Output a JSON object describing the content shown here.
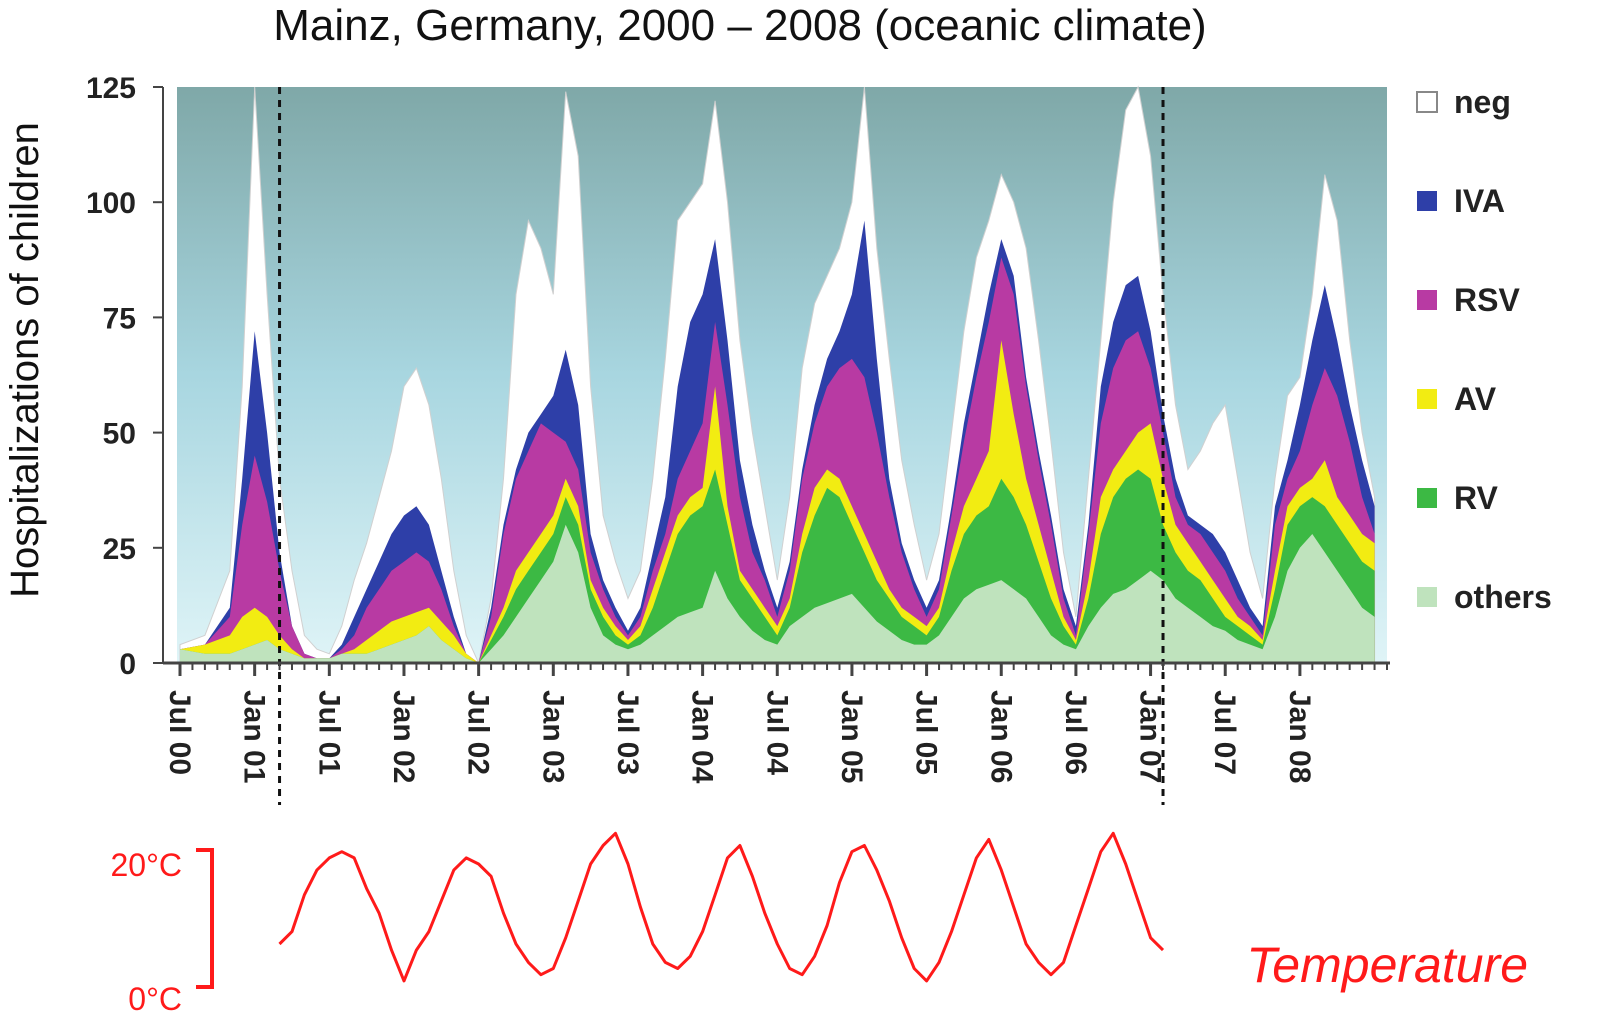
{
  "chart_data": {
    "type": "area",
    "title": "Mainz, Germany, 2000 – 2008 (oceanic climate)",
    "ylabel": "Hospitalizations of children",
    "xlabel": "",
    "ylim": [
      0,
      125
    ],
    "yticks": [
      0,
      25,
      50,
      75,
      100,
      125
    ],
    "xlim": [
      0,
      97
    ],
    "x_unit": "months since Jul 2000",
    "x_tick_labels": [
      "Jul 00",
      "Jan 01",
      "Jul 01",
      "Jan 02",
      "Jul 02",
      "Jan 03",
      "Jul 03",
      "Jan 04",
      "Jul 04",
      "Jan 05",
      "Jul 05",
      "Jan 06",
      "Jul 06",
      "Jan 07",
      "Jul 07",
      "Jan 08"
    ],
    "x_tick_positions": [
      0,
      6,
      12,
      18,
      24,
      30,
      36,
      42,
      48,
      54,
      60,
      66,
      72,
      78,
      84,
      90
    ],
    "vertical_lines": [
      8,
      79
    ],
    "stack_order": [
      "others",
      "RV",
      "AV",
      "RSV",
      "IVA",
      "neg"
    ],
    "legend": {
      "placement": "right",
      "entries": [
        {
          "name": "neg",
          "color": "#ffffff"
        },
        {
          "name": "IVA",
          "color": "#2e3fa8"
        },
        {
          "name": "RSV",
          "color": "#b83aa3"
        },
        {
          "name": "AV",
          "color": "#f2ec12"
        },
        {
          "name": "RV",
          "color": "#3cb944"
        },
        {
          "name": "others",
          "color": "#bfe3bd"
        }
      ]
    },
    "series_colors": {
      "others": "#bfe3bd",
      "RV": "#3cb944",
      "AV": "#f2ec12",
      "RSV": "#b83aa3",
      "IVA": "#2e3fa8",
      "neg": "#ffffff"
    },
    "cumulative_top_values": {
      "x": [
        0,
        2,
        4,
        5,
        6,
        7,
        8,
        9,
        10,
        11,
        12,
        13,
        14,
        15,
        16,
        17,
        18,
        19,
        20,
        21,
        22,
        23,
        24,
        25,
        26,
        27,
        28,
        29,
        30,
        31,
        32,
        33,
        34,
        35,
        36,
        37,
        38,
        39,
        40,
        41,
        42,
        43,
        44,
        45,
        46,
        47,
        48,
        49,
        50,
        51,
        52,
        53,
        54,
        55,
        56,
        57,
        58,
        59,
        60,
        61,
        62,
        63,
        64,
        65,
        66,
        67,
        68,
        69,
        70,
        71,
        72,
        73,
        74,
        75,
        76,
        77,
        78,
        79,
        80,
        81,
        82,
        83,
        84,
        85,
        86,
        87,
        88,
        89,
        90,
        91,
        92,
        93,
        94,
        95,
        96
      ],
      "others": [
        3,
        2,
        2,
        3,
        4,
        5,
        3,
        2,
        1,
        1,
        1,
        2,
        2,
        2,
        3,
        4,
        5,
        6,
        8,
        5,
        3,
        1,
        0,
        3,
        6,
        10,
        14,
        18,
        22,
        30,
        24,
        12,
        6,
        4,
        3,
        4,
        6,
        8,
        10,
        11,
        12,
        20,
        14,
        10,
        7,
        5,
        4,
        8,
        10,
        12,
        13,
        14,
        15,
        12,
        9,
        7,
        5,
        4,
        4,
        6,
        10,
        14,
        16,
        17,
        18,
        16,
        14,
        10,
        6,
        4,
        3,
        8,
        12,
        15,
        16,
        18,
        20,
        18,
        14,
        12,
        10,
        8,
        7,
        5,
        4,
        3,
        10,
        20,
        25,
        28,
        24,
        20,
        16,
        12,
        10
      ],
      "RV": [
        3,
        2,
        2,
        3,
        4,
        5,
        3,
        2,
        1,
        1,
        1,
        2,
        2,
        2,
        3,
        4,
        5,
        6,
        8,
        5,
        3,
        1,
        0,
        5,
        10,
        16,
        20,
        24,
        28,
        36,
        30,
        16,
        10,
        6,
        4,
        6,
        12,
        20,
        28,
        32,
        34,
        42,
        30,
        18,
        14,
        10,
        6,
        12,
        24,
        32,
        38,
        36,
        30,
        24,
        18,
        14,
        10,
        8,
        6,
        10,
        20,
        28,
        32,
        34,
        40,
        36,
        30,
        22,
        14,
        8,
        4,
        14,
        28,
        36,
        40,
        42,
        40,
        30,
        24,
        20,
        18,
        14,
        10,
        8,
        6,
        4,
        16,
        30,
        34,
        36,
        34,
        30,
        26,
        22,
        20
      ],
      "AV": [
        3,
        4,
        6,
        10,
        12,
        10,
        6,
        3,
        1,
        1,
        1,
        2,
        3,
        5,
        7,
        9,
        10,
        11,
        12,
        9,
        6,
        2,
        0,
        6,
        12,
        20,
        24,
        28,
        32,
        40,
        34,
        18,
        12,
        8,
        5,
        8,
        16,
        24,
        32,
        36,
        38,
        60,
        34,
        20,
        16,
        12,
        8,
        14,
        28,
        38,
        42,
        40,
        34,
        28,
        22,
        16,
        12,
        10,
        8,
        12,
        24,
        34,
        40,
        46,
        70,
        54,
        40,
        30,
        20,
        10,
        5,
        18,
        36,
        42,
        46,
        50,
        52,
        40,
        30,
        26,
        22,
        18,
        14,
        10,
        8,
        5,
        20,
        34,
        38,
        40,
        44,
        36,
        32,
        28,
        26
      ],
      "RSV": [
        3,
        4,
        10,
        30,
        45,
        35,
        20,
        8,
        2,
        1,
        1,
        3,
        6,
        12,
        16,
        20,
        22,
        24,
        22,
        16,
        8,
        2,
        0,
        10,
        28,
        40,
        46,
        52,
        50,
        48,
        42,
        24,
        16,
        10,
        6,
        10,
        20,
        28,
        40,
        46,
        52,
        74,
        56,
        36,
        24,
        18,
        10,
        20,
        40,
        52,
        60,
        64,
        66,
        62,
        50,
        36,
        24,
        16,
        10,
        16,
        32,
        48,
        62,
        74,
        88,
        80,
        60,
        44,
        30,
        14,
        6,
        28,
        52,
        64,
        70,
        72,
        64,
        50,
        36,
        30,
        28,
        24,
        20,
        14,
        10,
        6,
        30,
        40,
        46,
        56,
        64,
        58,
        48,
        36,
        28
      ],
      "IVA": [
        3,
        4,
        12,
        40,
        72,
        50,
        24,
        8,
        2,
        1,
        1,
        4,
        10,
        16,
        22,
        28,
        32,
        34,
        30,
        20,
        10,
        2,
        0,
        12,
        30,
        42,
        50,
        54,
        58,
        68,
        56,
        28,
        18,
        12,
        7,
        12,
        24,
        36,
        60,
        74,
        80,
        92,
        70,
        44,
        30,
        20,
        12,
        22,
        42,
        56,
        66,
        72,
        80,
        96,
        66,
        40,
        26,
        18,
        12,
        18,
        34,
        52,
        66,
        80,
        92,
        84,
        62,
        46,
        32,
        16,
        8,
        30,
        60,
        74,
        82,
        84,
        72,
        54,
        40,
        32,
        30,
        28,
        24,
        18,
        12,
        8,
        34,
        44,
        56,
        70,
        82,
        70,
        56,
        44,
        34
      ],
      "neg": [
        4,
        6,
        20,
        60,
        125,
        80,
        40,
        20,
        6,
        3,
        2,
        8,
        18,
        26,
        36,
        46,
        60,
        64,
        56,
        40,
        20,
        6,
        0,
        14,
        40,
        80,
        96,
        90,
        80,
        124,
        110,
        60,
        32,
        22,
        14,
        20,
        40,
        66,
        96,
        100,
        104,
        122,
        100,
        70,
        50,
        34,
        18,
        36,
        64,
        78,
        84,
        90,
        100,
        125,
        90,
        66,
        44,
        30,
        18,
        28,
        50,
        72,
        88,
        96,
        106,
        100,
        90,
        70,
        48,
        24,
        10,
        40,
        70,
        100,
        120,
        125,
        110,
        80,
        56,
        42,
        46,
        52,
        56,
        40,
        24,
        14,
        40,
        58,
        62,
        80,
        106,
        96,
        70,
        50,
        36
      ]
    },
    "temperature_axis_labels": [
      "20°C",
      "0°C"
    ],
    "temperature_label": "Temperature",
    "temperature_color": "#ff1a1a",
    "temperature_values": {
      "x": [
        8,
        9,
        10,
        11,
        12,
        13,
        14,
        15,
        16,
        17,
        18,
        19,
        20,
        21,
        22,
        23,
        24,
        25,
        26,
        27,
        28,
        29,
        30,
        31,
        32,
        33,
        34,
        35,
        36,
        37,
        38,
        39,
        40,
        41,
        42,
        43,
        44,
        45,
        46,
        47,
        48,
        49,
        50,
        51,
        52,
        53,
        54,
        55,
        56,
        57,
        58,
        59,
        60,
        61,
        62,
        63,
        64,
        65,
        66,
        67,
        68,
        69,
        70,
        71,
        72,
        73,
        74,
        75,
        76,
        77,
        78,
        79
      ],
      "y": [
        7,
        9,
        15,
        19,
        21,
        22,
        21,
        16,
        12,
        6,
        1,
        6,
        9,
        14,
        19,
        21,
        20,
        18,
        12,
        7,
        4,
        2,
        3,
        8,
        14,
        20,
        23,
        25,
        20,
        13,
        7,
        4,
        3,
        5,
        9,
        15,
        21,
        23,
        18,
        12,
        7,
        3,
        2,
        5,
        10,
        17,
        22,
        23,
        19,
        14,
        8,
        3,
        1,
        4,
        9,
        15,
        21,
        24,
        19,
        13,
        7,
        4,
        2,
        4,
        10,
        16,
        22,
        25,
        20,
        14,
        8,
        6
      ]
    }
  }
}
